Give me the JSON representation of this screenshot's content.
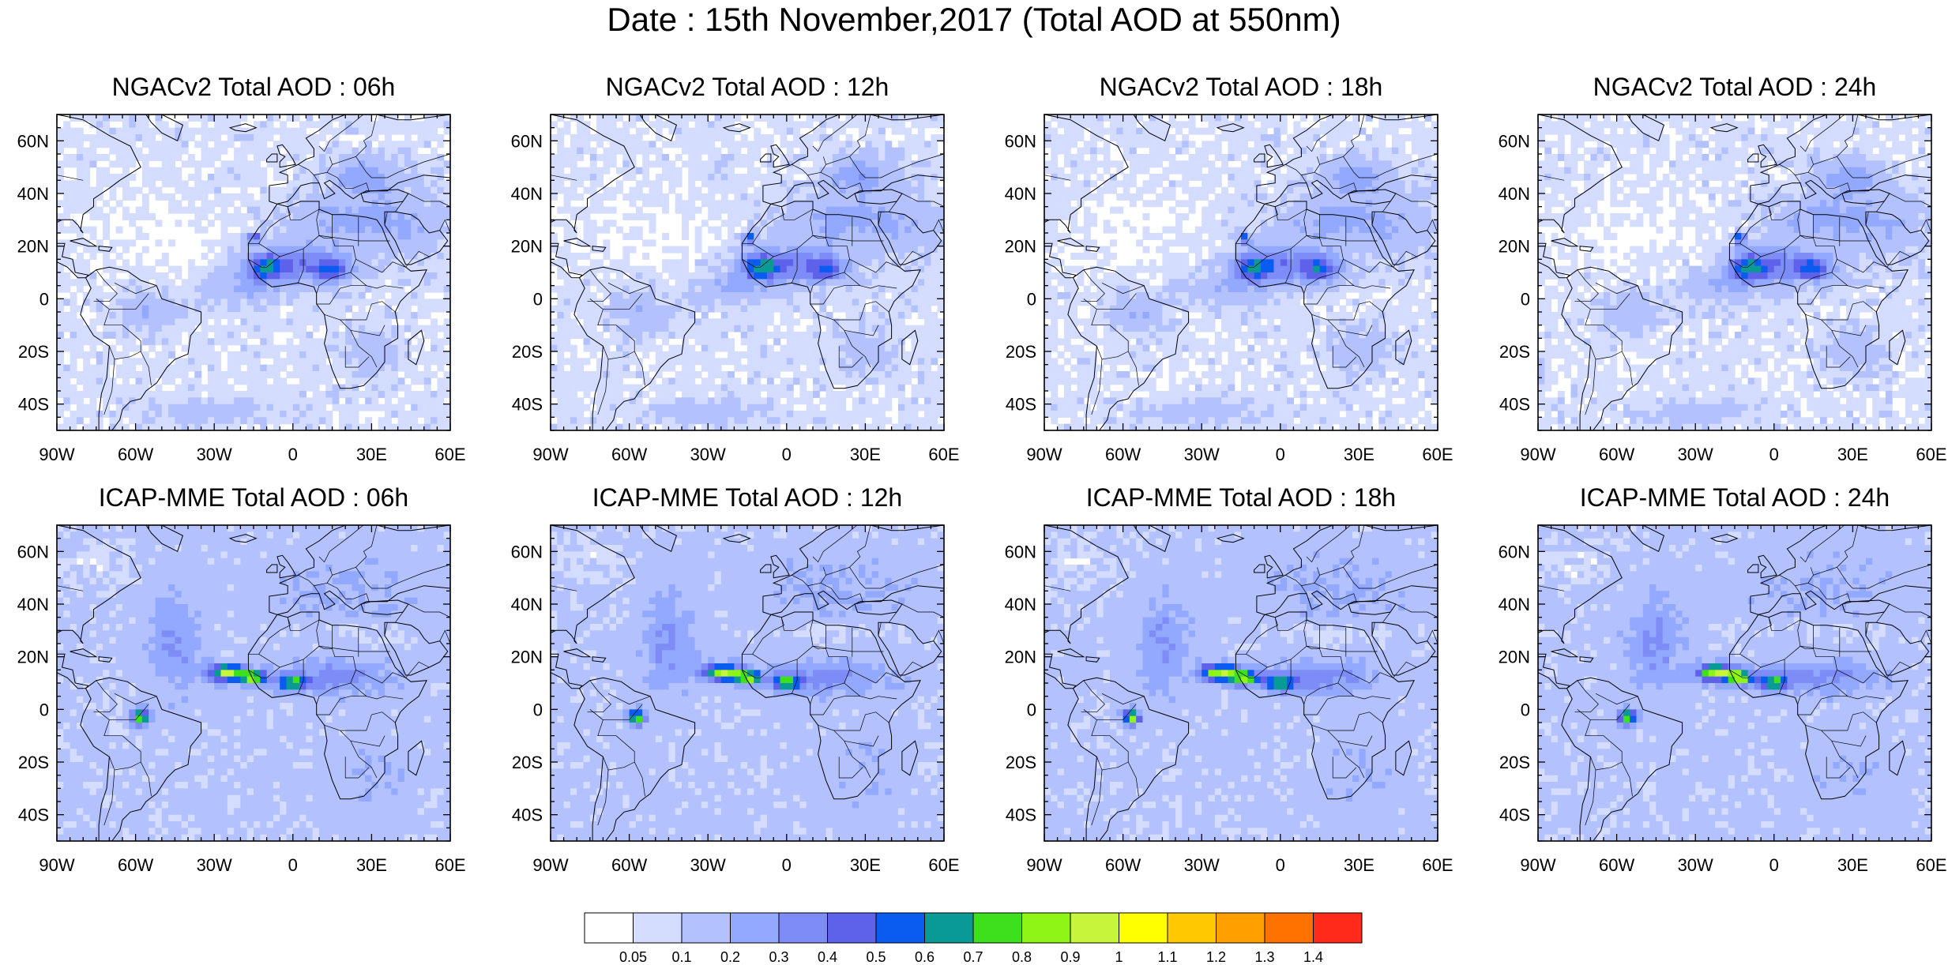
{
  "figure": {
    "title": "Date : 15th November,2017 (Total AOD at 550nm)"
  },
  "axes": {
    "lon_ticks": [
      "90W",
      "60W",
      "30W",
      "0",
      "30E",
      "60E"
    ],
    "lat_ticks": [
      "60N",
      "40N",
      "20N",
      "0",
      "20S",
      "40S"
    ],
    "lon_values": [
      -90,
      -60,
      -30,
      0,
      30,
      60
    ],
    "lat_values": [
      60,
      40,
      20,
      0,
      -20,
      -40
    ],
    "lon_range": [
      -90,
      60
    ],
    "lat_range": [
      -50,
      70
    ]
  },
  "panels": [
    {
      "title": "NGACv2 Total AOD : 06h",
      "model": "ngac",
      "hour": 6
    },
    {
      "title": "NGACv2 Total AOD : 12h",
      "model": "ngac",
      "hour": 12
    },
    {
      "title": "NGACv2 Total AOD : 18h",
      "model": "ngac",
      "hour": 18
    },
    {
      "title": "NGACv2 Total AOD : 24h",
      "model": "ngac",
      "hour": 24
    },
    {
      "title": "ICAP-MME Total AOD : 06h",
      "model": "icap",
      "hour": 6
    },
    {
      "title": "ICAP-MME Total AOD : 12h",
      "model": "icap",
      "hour": 12
    },
    {
      "title": "ICAP-MME Total AOD : 18h",
      "model": "icap",
      "hour": 18
    },
    {
      "title": "ICAP-MME Total AOD : 24h",
      "model": "icap",
      "hour": 24
    }
  ],
  "colorbar": {
    "labels": [
      "0.05",
      "0.1",
      "0.2",
      "0.3",
      "0.4",
      "0.5",
      "0.6",
      "0.7",
      "0.8",
      "0.9",
      "1",
      "1.1",
      "1.2",
      "1.3",
      "1.4"
    ],
    "colors": [
      "#ffffff",
      "#d4dcff",
      "#b3c2ff",
      "#93a9ff",
      "#7d8cf7",
      "#5e62ea",
      "#0a5bf0",
      "#0a9a96",
      "#3ee01e",
      "#8ef517",
      "#c6f53c",
      "#ffff00",
      "#ffc800",
      "#ff9f00",
      "#ff7200",
      "#ff2a1a"
    ]
  },
  "map_layers": {
    "ocean_color": "#ffffff",
    "background_shade": "#d4dcff",
    "coast_color": "#000000"
  }
}
